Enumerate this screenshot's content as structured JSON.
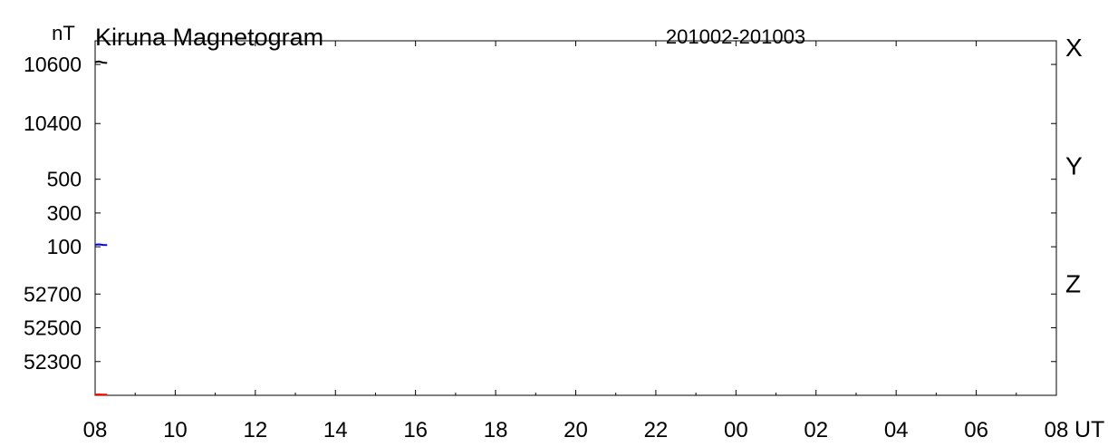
{
  "chart_data": {
    "type": "line",
    "title": "Kiruna Magnetogram",
    "date_range": "201002-201003",
    "unit": "nT",
    "x_unit": "UT",
    "x_ticks": [
      "08",
      "10",
      "12",
      "14",
      "16",
      "18",
      "20",
      "22",
      "00",
      "02",
      "04",
      "06",
      "08"
    ],
    "x_range_hours": [
      8,
      32
    ],
    "panels": [
      {
        "component": "X",
        "color": "#000000",
        "y_range": [
          10280,
          10680
        ],
        "y_ticks": [
          10400,
          10600
        ],
        "y_tick_labels": [
          "10400",
          "10600"
        ],
        "points": [
          [
            8.0,
            10608
          ],
          [
            8.1,
            10610
          ],
          [
            8.2,
            10606
          ],
          [
            8.3,
            10605
          ]
        ]
      },
      {
        "component": "Y",
        "color": "#0000ff",
        "y_range": [
          -80,
          620
        ],
        "y_ticks": [
          100,
          300,
          500
        ],
        "y_tick_labels": [
          "100",
          "300",
          "500"
        ],
        "points": [
          [
            8.0,
            112
          ],
          [
            8.1,
            114
          ],
          [
            8.2,
            111
          ],
          [
            8.3,
            110
          ]
        ]
      },
      {
        "component": "Z",
        "color": "#ff0000",
        "y_range": [
          52100,
          52800
        ],
        "y_ticks": [
          52300,
          52500,
          52700
        ],
        "y_tick_labels": [
          "52300",
          "52500",
          "52700"
        ],
        "points": [
          [
            8.0,
            52105
          ],
          [
            8.1,
            52105
          ],
          [
            8.2,
            52104
          ],
          [
            8.3,
            52104
          ]
        ]
      }
    ]
  }
}
